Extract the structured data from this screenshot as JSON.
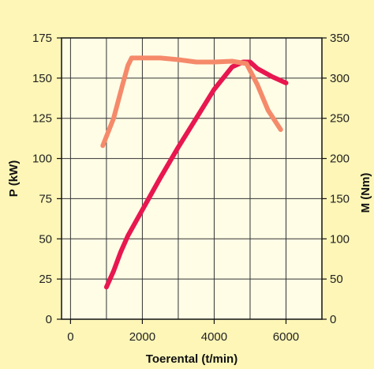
{
  "chart_data": {
    "type": "line",
    "xlabel": "Toerental (t/min)",
    "ylabel_left": "P (kW)",
    "ylabel_right": "M (Nm)",
    "x_ticks": [
      "0",
      "2000",
      "4000",
      "6000"
    ],
    "y_ticks_left": [
      "0",
      "25",
      "50",
      "75",
      "100",
      "125",
      "150",
      "175"
    ],
    "y_ticks_right": [
      "0",
      "50",
      "100",
      "150",
      "200",
      "250",
      "300",
      "350"
    ],
    "xlim": [
      -250,
      7000
    ],
    "ylim_left": [
      0,
      175
    ],
    "ylim_right": [
      0,
      350
    ],
    "grid": true,
    "series": [
      {
        "axis": "left",
        "color": "#e8174f",
        "points": [
          [
            1000,
            20
          ],
          [
            1200,
            30
          ],
          [
            1400,
            42
          ],
          [
            1600,
            52
          ],
          [
            2000,
            68
          ],
          [
            2500,
            88
          ],
          [
            3000,
            107
          ],
          [
            3500,
            125
          ],
          [
            4000,
            143
          ],
          [
            4500,
            157
          ],
          [
            4800,
            160
          ],
          [
            5000,
            160
          ],
          [
            5200,
            156
          ],
          [
            5600,
            151
          ],
          [
            6000,
            147
          ]
        ]
      },
      {
        "axis": "right",
        "color": "#f58a6a",
        "points": [
          [
            900,
            216
          ],
          [
            1200,
            250
          ],
          [
            1450,
            292
          ],
          [
            1600,
            316
          ],
          [
            1700,
            325
          ],
          [
            2000,
            325
          ],
          [
            2500,
            325
          ],
          [
            3000,
            323
          ],
          [
            3500,
            320
          ],
          [
            4000,
            320
          ],
          [
            4500,
            321
          ],
          [
            4900,
            318
          ],
          [
            5200,
            292
          ],
          [
            5500,
            260
          ],
          [
            5850,
            236
          ]
        ]
      }
    ]
  }
}
